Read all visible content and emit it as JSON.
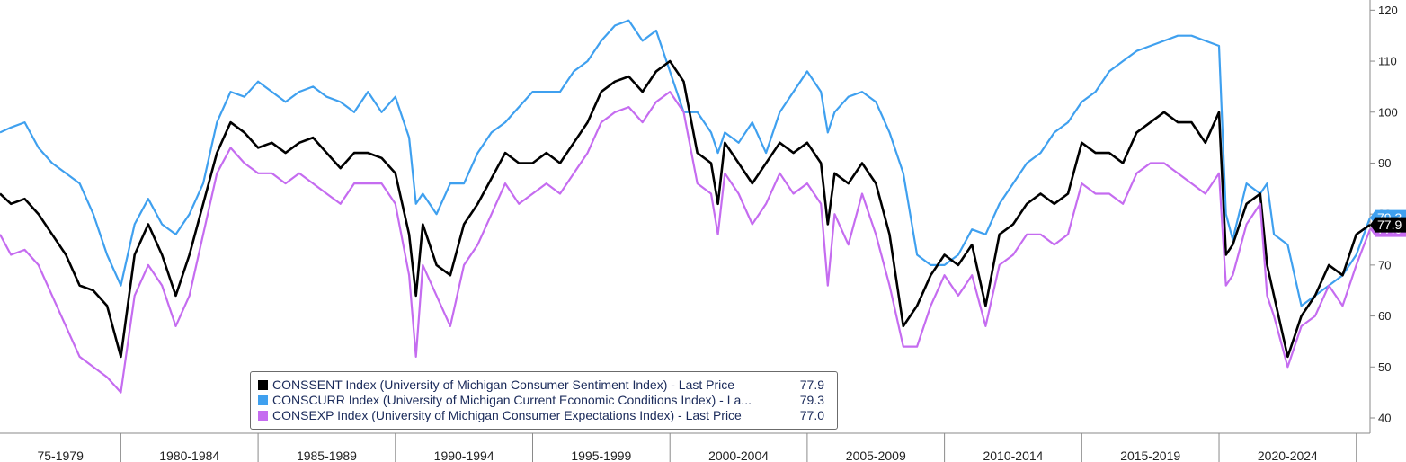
{
  "colors": {
    "sentiment": "#000000",
    "current": "#3fa0ef",
    "expectations": "#c56cf0",
    "axis": "#8a8a8a",
    "grid": "#d8d8d8"
  },
  "chart_data": {
    "type": "line",
    "x_range": [
      1975.6,
      2025.5
    ],
    "ylim": [
      37,
      122
    ],
    "y_ticks": [
      40,
      50,
      60,
      70,
      80,
      90,
      100,
      110,
      120
    ],
    "x_period_labels": [
      {
        "label": "75-1979",
        "start": 1975,
        "end": 1980
      },
      {
        "label": "1980-1984",
        "start": 1980,
        "end": 1985
      },
      {
        "label": "1985-1989",
        "start": 1985,
        "end": 1990
      },
      {
        "label": "1990-1994",
        "start": 1990,
        "end": 1995
      },
      {
        "label": "1995-1999",
        "start": 1995,
        "end": 2000
      },
      {
        "label": "2000-2004",
        "start": 2000,
        "end": 2005
      },
      {
        "label": "2005-2009",
        "start": 2005,
        "end": 2010
      },
      {
        "label": "2010-2014",
        "start": 2010,
        "end": 2015
      },
      {
        "label": "2015-2019",
        "start": 2015,
        "end": 2020
      },
      {
        "label": "2020-2024",
        "start": 2020,
        "end": 2025
      }
    ],
    "grid": false,
    "legend_position": "bottom-center",
    "series": [
      {
        "key": "current",
        "name": "CONSCURR Index (University of Michigan Current Economic Conditions Index) - La...",
        "last": "79.3",
        "x": [
          1975.6,
          1976.0,
          1976.5,
          1977.0,
          1977.5,
          1978.0,
          1978.5,
          1979.0,
          1979.5,
          1980.0,
          1980.5,
          1981.0,
          1981.5,
          1982.0,
          1982.5,
          1983.0,
          1983.5,
          1984.0,
          1984.5,
          1985.0,
          1985.5,
          1986.0,
          1986.5,
          1987.0,
          1987.5,
          1988.0,
          1988.5,
          1989.0,
          1989.5,
          1990.0,
          1990.5,
          1990.75,
          1991.0,
          1991.5,
          1992.0,
          1992.5,
          1993.0,
          1993.5,
          1994.0,
          1994.5,
          1995.0,
          1995.5,
          1996.0,
          1996.5,
          1997.0,
          1997.5,
          1998.0,
          1998.5,
          1999.0,
          1999.5,
          2000.0,
          2000.5,
          2001.0,
          2001.5,
          2001.75,
          2002.0,
          2002.5,
          2003.0,
          2003.5,
          2004.0,
          2004.5,
          2005.0,
          2005.5,
          2005.75,
          2006.0,
          2006.5,
          2007.0,
          2007.5,
          2008.0,
          2008.5,
          2009.0,
          2009.5,
          2010.0,
          2010.5,
          2011.0,
          2011.5,
          2012.0,
          2012.5,
          2013.0,
          2013.5,
          2014.0,
          2014.5,
          2015.0,
          2015.5,
          2016.0,
          2016.5,
          2017.0,
          2017.5,
          2018.0,
          2018.5,
          2019.0,
          2019.5,
          2020.0,
          2020.25,
          2020.5,
          2021.0,
          2021.5,
          2021.75,
          2022.0,
          2022.5,
          2023.0,
          2023.5,
          2024.0,
          2024.5,
          2025.0,
          2025.5
        ],
        "y": [
          96,
          97,
          98,
          93,
          90,
          88,
          86,
          80,
          72,
          66,
          78,
          83,
          78,
          76,
          80,
          86,
          98,
          104,
          103,
          106,
          104,
          102,
          104,
          105,
          103,
          102,
          100,
          104,
          100,
          103,
          95,
          82,
          84,
          80,
          86,
          86,
          92,
          96,
          98,
          101,
          104,
          104,
          104,
          108,
          110,
          114,
          117,
          118,
          114,
          116,
          108,
          100,
          100,
          96,
          92,
          96,
          94,
          98,
          92,
          100,
          104,
          108,
          104,
          96,
          100,
          103,
          104,
          102,
          96,
          88,
          72,
          70,
          70,
          72,
          77,
          76,
          82,
          86,
          90,
          92,
          96,
          98,
          102,
          104,
          108,
          110,
          112,
          113,
          114,
          115,
          115,
          114,
          113,
          80,
          75,
          86,
          84,
          86,
          76,
          74,
          62,
          64,
          66,
          68,
          72,
          79.3
        ]
      },
      {
        "key": "sentiment",
        "name": "CONSSENT Index (University of Michigan Consumer Sentiment Index) - Last Price",
        "last": "77.9",
        "x": [
          1975.6,
          1976.0,
          1976.5,
          1977.0,
          1977.5,
          1978.0,
          1978.5,
          1979.0,
          1979.5,
          1980.0,
          1980.5,
          1981.0,
          1981.5,
          1982.0,
          1982.5,
          1983.0,
          1983.5,
          1984.0,
          1984.5,
          1985.0,
          1985.5,
          1986.0,
          1986.5,
          1987.0,
          1987.5,
          1988.0,
          1988.5,
          1989.0,
          1989.5,
          1990.0,
          1990.5,
          1990.75,
          1991.0,
          1991.5,
          1992.0,
          1992.5,
          1993.0,
          1993.5,
          1994.0,
          1994.5,
          1995.0,
          1995.5,
          1996.0,
          1996.5,
          1997.0,
          1997.5,
          1998.0,
          1998.5,
          1999.0,
          1999.5,
          2000.0,
          2000.5,
          2001.0,
          2001.5,
          2001.75,
          2002.0,
          2002.5,
          2003.0,
          2003.5,
          2004.0,
          2004.5,
          2005.0,
          2005.5,
          2005.75,
          2006.0,
          2006.5,
          2007.0,
          2007.5,
          2008.0,
          2008.5,
          2009.0,
          2009.5,
          2010.0,
          2010.5,
          2011.0,
          2011.5,
          2012.0,
          2012.5,
          2013.0,
          2013.5,
          2014.0,
          2014.5,
          2015.0,
          2015.5,
          2016.0,
          2016.5,
          2017.0,
          2017.5,
          2018.0,
          2018.5,
          2019.0,
          2019.5,
          2020.0,
          2020.25,
          2020.5,
          2021.0,
          2021.5,
          2021.75,
          2022.0,
          2022.5,
          2023.0,
          2023.5,
          2024.0,
          2024.5,
          2025.0,
          2025.5
        ],
        "y": [
          84,
          82,
          83,
          80,
          76,
          72,
          66,
          65,
          62,
          52,
          72,
          78,
          72,
          64,
          72,
          82,
          92,
          98,
          96,
          93,
          94,
          92,
          94,
          95,
          92,
          89,
          92,
          92,
          91,
          88,
          76,
          64,
          78,
          70,
          68,
          78,
          82,
          87,
          92,
          90,
          90,
          92,
          90,
          94,
          98,
          104,
          106,
          107,
          104,
          108,
          110,
          106,
          92,
          90,
          82,
          94,
          90,
          86,
          90,
          94,
          92,
          94,
          90,
          78,
          88,
          86,
          90,
          86,
          76,
          58,
          62,
          68,
          72,
          70,
          74,
          62,
          76,
          78,
          82,
          84,
          82,
          84,
          94,
          92,
          92,
          90,
          96,
          98,
          100,
          98,
          98,
          94,
          100,
          72,
          74,
          82,
          84,
          70,
          64,
          52,
          60,
          64,
          70,
          68,
          76,
          77.9
        ]
      },
      {
        "key": "expectations",
        "name": "CONSEXP Index (University of Michigan Consumer Expectations Index) - Last Price",
        "last": "77.0",
        "x": [
          1975.6,
          1976.0,
          1976.5,
          1977.0,
          1977.5,
          1978.0,
          1978.5,
          1979.0,
          1979.5,
          1980.0,
          1980.5,
          1981.0,
          1981.5,
          1982.0,
          1982.5,
          1983.0,
          1983.5,
          1984.0,
          1984.5,
          1985.0,
          1985.5,
          1986.0,
          1986.5,
          1987.0,
          1987.5,
          1988.0,
          1988.5,
          1989.0,
          1989.5,
          1990.0,
          1990.5,
          1990.75,
          1991.0,
          1991.5,
          1992.0,
          1992.5,
          1993.0,
          1993.5,
          1994.0,
          1994.5,
          1995.0,
          1995.5,
          1996.0,
          1996.5,
          1997.0,
          1997.5,
          1998.0,
          1998.5,
          1999.0,
          1999.5,
          2000.0,
          2000.5,
          2001.0,
          2001.5,
          2001.75,
          2002.0,
          2002.5,
          2003.0,
          2003.5,
          2004.0,
          2004.5,
          2005.0,
          2005.5,
          2005.75,
          2006.0,
          2006.5,
          2007.0,
          2007.5,
          2008.0,
          2008.5,
          2009.0,
          2009.5,
          2010.0,
          2010.5,
          2011.0,
          2011.5,
          2012.0,
          2012.5,
          2013.0,
          2013.5,
          2014.0,
          2014.5,
          2015.0,
          2015.5,
          2016.0,
          2016.5,
          2017.0,
          2017.5,
          2018.0,
          2018.5,
          2019.0,
          2019.5,
          2020.0,
          2020.25,
          2020.5,
          2021.0,
          2021.5,
          2021.75,
          2022.0,
          2022.5,
          2023.0,
          2023.5,
          2024.0,
          2024.5,
          2025.0,
          2025.5
        ],
        "y": [
          76,
          72,
          73,
          70,
          64,
          58,
          52,
          50,
          48,
          45,
          64,
          70,
          66,
          58,
          64,
          76,
          88,
          93,
          90,
          88,
          88,
          86,
          88,
          86,
          84,
          82,
          86,
          86,
          86,
          82,
          68,
          52,
          70,
          64,
          58,
          70,
          74,
          80,
          86,
          82,
          84,
          86,
          84,
          88,
          92,
          98,
          100,
          101,
          98,
          102,
          104,
          100,
          86,
          84,
          76,
          88,
          84,
          78,
          82,
          88,
          84,
          86,
          82,
          66,
          80,
          74,
          84,
          76,
          66,
          54,
          54,
          62,
          68,
          64,
          68,
          58,
          70,
          72,
          76,
          76,
          74,
          76,
          86,
          84,
          84,
          82,
          88,
          90,
          90,
          88,
          86,
          84,
          88,
          66,
          68,
          78,
          82,
          64,
          60,
          50,
          58,
          60,
          66,
          62,
          70,
          77.0
        ]
      }
    ]
  }
}
